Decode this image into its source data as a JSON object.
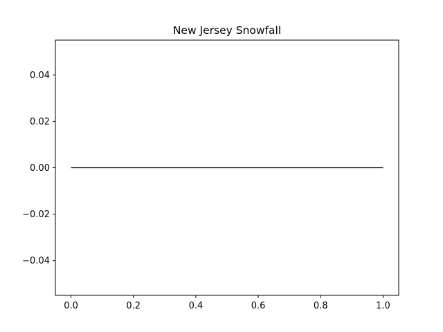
{
  "chart_data": {
    "type": "line",
    "title": "New Jersey Snowfall",
    "xlabel": "",
    "ylabel": "",
    "xlim": [
      -0.05,
      1.05
    ],
    "ylim": [
      -0.055,
      0.055
    ],
    "xticks": [
      0.0,
      0.2,
      0.4,
      0.6,
      0.8,
      1.0
    ],
    "xtick_labels": [
      "0.0",
      "0.2",
      "0.4",
      "0.6",
      "0.8",
      "1.0"
    ],
    "yticks": [
      -0.04,
      -0.02,
      0.0,
      0.02,
      0.04
    ],
    "ytick_labels": [
      "−0.04",
      "−0.02",
      "0.00",
      "0.02",
      "0.04"
    ],
    "grid": false,
    "series": [
      {
        "color": "#000000",
        "x": [
          0.0,
          1.0
        ],
        "y": [
          0.0,
          0.0
        ]
      }
    ]
  }
}
